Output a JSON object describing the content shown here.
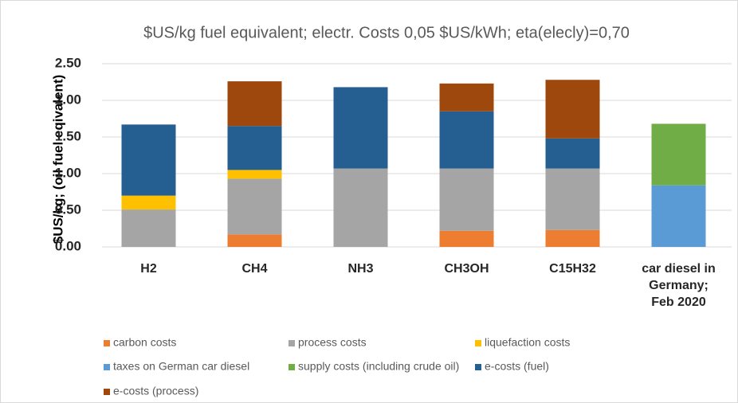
{
  "chart_data": {
    "type": "stacked-bar",
    "title": "$US/kg fuel equivalent; electr. Costs 0,05 $US/kWh; eta(elecly)=0,70",
    "y_label": "$US/kg; (oil fuel eqivalent)",
    "categories": [
      "H2",
      "CH4",
      "NH3",
      "CH3OH",
      "C15H32",
      "car diesel  in Germany; Feb 2020"
    ],
    "series": [
      {
        "name": "carbon costs",
        "color": "#ed7d31",
        "values": [
          0,
          0.17,
          0,
          0.22,
          0.23,
          0
        ]
      },
      {
        "name": "process costs",
        "color": "#a5a5a5",
        "values": [
          0.51,
          0.76,
          1.07,
          0.85,
          0.84,
          0
        ]
      },
      {
        "name": "liquefaction costs",
        "color": "#ffc000",
        "values": [
          0.19,
          0.12,
          0,
          0,
          0,
          0
        ]
      },
      {
        "name": "taxes on German car diesel",
        "color": "#5b9bd5",
        "values": [
          0,
          0,
          0,
          0,
          0,
          0.84
        ]
      },
      {
        "name": "supply costs (including crude oil)",
        "color": "#70ad47",
        "values": [
          0,
          0,
          0,
          0,
          0,
          0.84
        ]
      },
      {
        "name": "e-costs (fuel)",
        "color": "#255e91",
        "values": [
          0.97,
          0.6,
          1.11,
          0.78,
          0.41,
          0
        ]
      },
      {
        "name": "e-costs (process)",
        "color": "#9e480e",
        "values": [
          0,
          0.61,
          0,
          0.38,
          0.8,
          0
        ]
      }
    ],
    "ylim": [
      0,
      2.5
    ],
    "yticks": [
      {
        "value": 0,
        "label": "0.00"
      },
      {
        "value": 0.5,
        "label": "0.50"
      },
      {
        "value": 1,
        "label": "1.00"
      },
      {
        "value": 1.5,
        "label": "1.50"
      },
      {
        "value": 2,
        "label": "2.00"
      },
      {
        "value": 2.5,
        "label": "2.50"
      }
    ],
    "grid": true
  }
}
